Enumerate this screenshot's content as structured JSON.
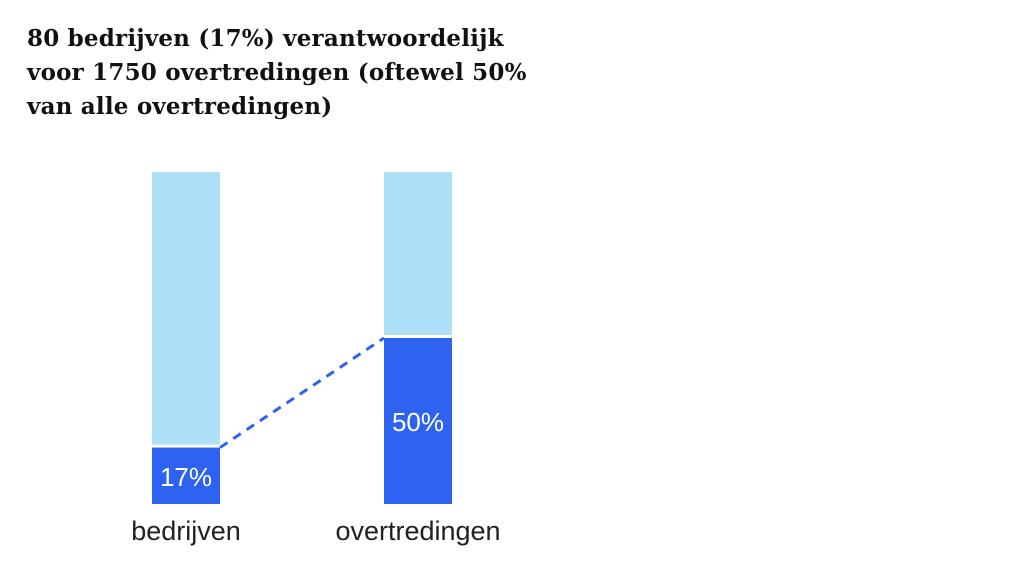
{
  "chart_data": {
    "type": "bar",
    "stacked": true,
    "title_lines": [
      "80 bedrijven (17%) verantwoordelijk",
      "voor 1750 overtredingen (oftewel 50%",
      "van alle overtredingen)"
    ],
    "categories": [
      "bedrijven",
      "overtredingen"
    ],
    "values": [
      17,
      50
    ],
    "value_labels": [
      "17%",
      "50%"
    ],
    "ylim": [
      0,
      100
    ],
    "colors": {
      "highlight": "#2e63f2",
      "remainder": "#aee0f8",
      "connector": "#2e63f2"
    },
    "connector": "dashed"
  }
}
